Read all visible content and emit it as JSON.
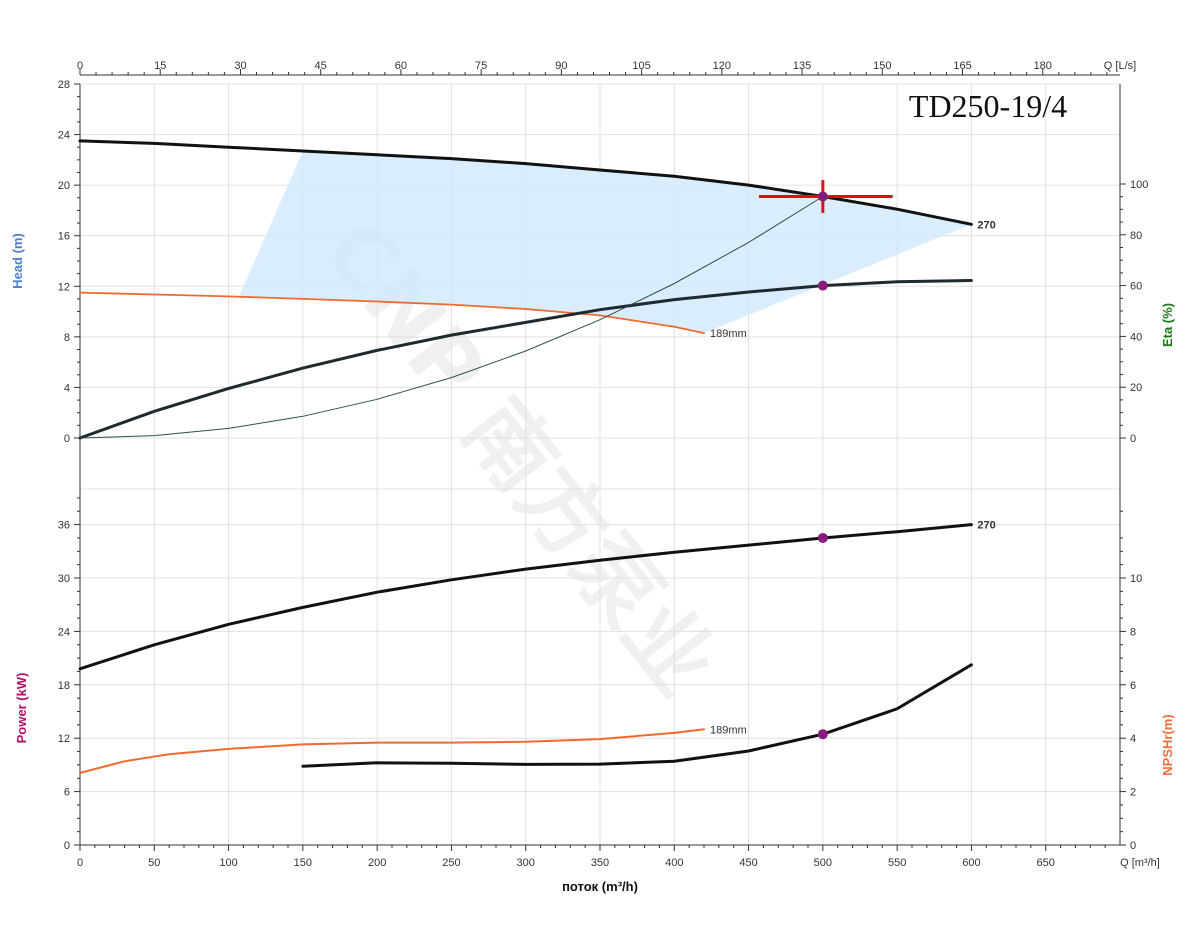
{
  "title": "TD250-19/4",
  "watermark": "CNP 南方泵业",
  "colors": {
    "head": "#4a7fd1",
    "eta": "#1a7a1a",
    "power": "#b0106a",
    "npsh": "#f07040",
    "curve": "#111111",
    "curve_orange": "#f06a30",
    "point": "#8a1a7a",
    "marker": "#e01010",
    "region": "#cfe9fb"
  },
  "chart_data": {
    "type": "line",
    "x_axis": {
      "label": "поток (m³/h)",
      "unit_label": "Q [m³/h]",
      "range": [
        0,
        700
      ],
      "ticks": [
        0,
        50,
        100,
        150,
        200,
        250,
        300,
        350,
        400,
        450,
        500,
        550,
        600,
        650
      ]
    },
    "x2_axis": {
      "unit_label": "Q [L/s]",
      "range": [
        0,
        194.44
      ],
      "ticks": [
        0,
        15,
        30,
        45,
        60,
        75,
        90,
        105,
        120,
        135,
        150,
        165,
        180
      ]
    },
    "head_panel": {
      "left_axis": {
        "label": "Head (m)",
        "range": [
          0,
          28
        ],
        "ticks": [
          0,
          4,
          8,
          12,
          16,
          20,
          24,
          28
        ]
      },
      "right_axis": {
        "label": "Eta (%)",
        "range": [
          0,
          100
        ],
        "ticks": [
          0,
          20,
          40,
          60,
          80,
          100
        ]
      },
      "series": [
        {
          "name": "270",
          "kind": "head",
          "points": [
            [
              0,
              23.5
            ],
            [
              50,
              23.3
            ],
            [
              100,
              23.0
            ],
            [
              150,
              22.7
            ],
            [
              200,
              22.4
            ],
            [
              250,
              22.1
            ],
            [
              300,
              21.7
            ],
            [
              350,
              21.2
            ],
            [
              400,
              20.7
            ],
            [
              450,
              20.0
            ],
            [
              500,
              19.1
            ],
            [
              550,
              18.1
            ],
            [
              600,
              16.9
            ]
          ]
        },
        {
          "name": "189mm",
          "kind": "head-min",
          "points": [
            [
              0,
              11.5
            ],
            [
              50,
              11.35
            ],
            [
              100,
              11.2
            ],
            [
              150,
              11.0
            ],
            [
              200,
              10.8
            ],
            [
              250,
              10.55
            ],
            [
              300,
              10.2
            ],
            [
              350,
              9.7
            ],
            [
              400,
              8.8
            ],
            [
              420,
              8.3
            ]
          ]
        },
        {
          "kind": "eta",
          "points": [
            [
              0,
              0
            ],
            [
              50,
              10.5
            ],
            [
              100,
              19.5
            ],
            [
              150,
              27.5
            ],
            [
              200,
              34.5
            ],
            [
              250,
              40.5
            ],
            [
              300,
              45.5
            ],
            [
              350,
              50.5
            ],
            [
              400,
              54.5
            ],
            [
              450,
              57.5
            ],
            [
              500,
              60.0
            ],
            [
              550,
              61.5
            ],
            [
              600,
              62.0
            ]
          ]
        },
        {
          "kind": "system",
          "points": [
            [
              0,
              0
            ],
            [
              50,
              0.19
            ],
            [
              100,
              0.76
            ],
            [
              150,
              1.72
            ],
            [
              200,
              3.06
            ],
            [
              250,
              4.78
            ],
            [
              300,
              6.88
            ],
            [
              350,
              9.36
            ],
            [
              400,
              12.22
            ],
            [
              450,
              15.47
            ],
            [
              500,
              19.1
            ]
          ]
        }
      ],
      "region": [
        [
          150,
          22.7
        ],
        [
          200,
          22.4
        ],
        [
          250,
          22.1
        ],
        [
          300,
          21.7
        ],
        [
          350,
          21.2
        ],
        [
          400,
          20.7
        ],
        [
          450,
          20.0
        ],
        [
          500,
          19.1
        ],
        [
          550,
          18.1
        ],
        [
          600,
          16.9
        ],
        [
          420,
          8.3
        ],
        [
          400,
          8.8
        ],
        [
          350,
          9.7
        ],
        [
          300,
          10.2
        ],
        [
          250,
          10.55
        ],
        [
          200,
          10.8
        ],
        [
          150,
          11.0
        ],
        [
          107,
          11.2
        ]
      ],
      "duty_points": [
        {
          "kind": "head",
          "x": 500,
          "y": 19.1
        },
        {
          "kind": "eta",
          "x": 500,
          "y": 60.0
        }
      ],
      "crosshair": {
        "x": 500,
        "y": 19.1,
        "x_from": 457,
        "x_to": 547,
        "y_from": 20.4,
        "y_to": 17.8
      }
    },
    "power_panel": {
      "left_axis": {
        "label": "Power (kW)",
        "range": [
          0,
          40
        ],
        "ticks": [
          0,
          6,
          12,
          18,
          24,
          30,
          36
        ]
      },
      "right_axis": {
        "label": "NPSHr(m)",
        "range": [
          0,
          13.333
        ],
        "ticks": [
          0,
          2,
          4,
          6,
          8,
          10
        ]
      },
      "series": [
        {
          "name": "270",
          "kind": "power",
          "points": [
            [
              0,
              19.8
            ],
            [
              50,
              22.5
            ],
            [
              100,
              24.8
            ],
            [
              150,
              26.7
            ],
            [
              200,
              28.4
            ],
            [
              250,
              29.8
            ],
            [
              300,
              31.0
            ],
            [
              350,
              32.0
            ],
            [
              400,
              32.9
            ],
            [
              450,
              33.7
            ],
            [
              500,
              34.5
            ],
            [
              550,
              35.2
            ],
            [
              600,
              36.0
            ]
          ]
        },
        {
          "name": "189mm",
          "kind": "power-min",
          "points": [
            [
              0,
              8.1
            ],
            [
              30,
              9.4
            ],
            [
              60,
              10.2
            ],
            [
              100,
              10.8
            ],
            [
              150,
              11.3
            ],
            [
              200,
              11.5
            ],
            [
              250,
              11.5
            ],
            [
              300,
              11.6
            ],
            [
              350,
              11.9
            ],
            [
              400,
              12.6
            ],
            [
              420,
              13.0
            ]
          ]
        },
        {
          "kind": "npsh",
          "points": [
            [
              150,
              2.95
            ],
            [
              200,
              3.08
            ],
            [
              250,
              3.06
            ],
            [
              300,
              3.02
            ],
            [
              350,
              3.03
            ],
            [
              400,
              3.14
            ],
            [
              450,
              3.52
            ],
            [
              500,
              4.15
            ],
            [
              550,
              5.1
            ],
            [
              600,
              6.75
            ]
          ]
        }
      ],
      "duty_points": [
        {
          "kind": "power",
          "x": 500,
          "y": 34.5
        },
        {
          "kind": "npsh",
          "x": 500,
          "y": 4.15
        }
      ]
    }
  }
}
